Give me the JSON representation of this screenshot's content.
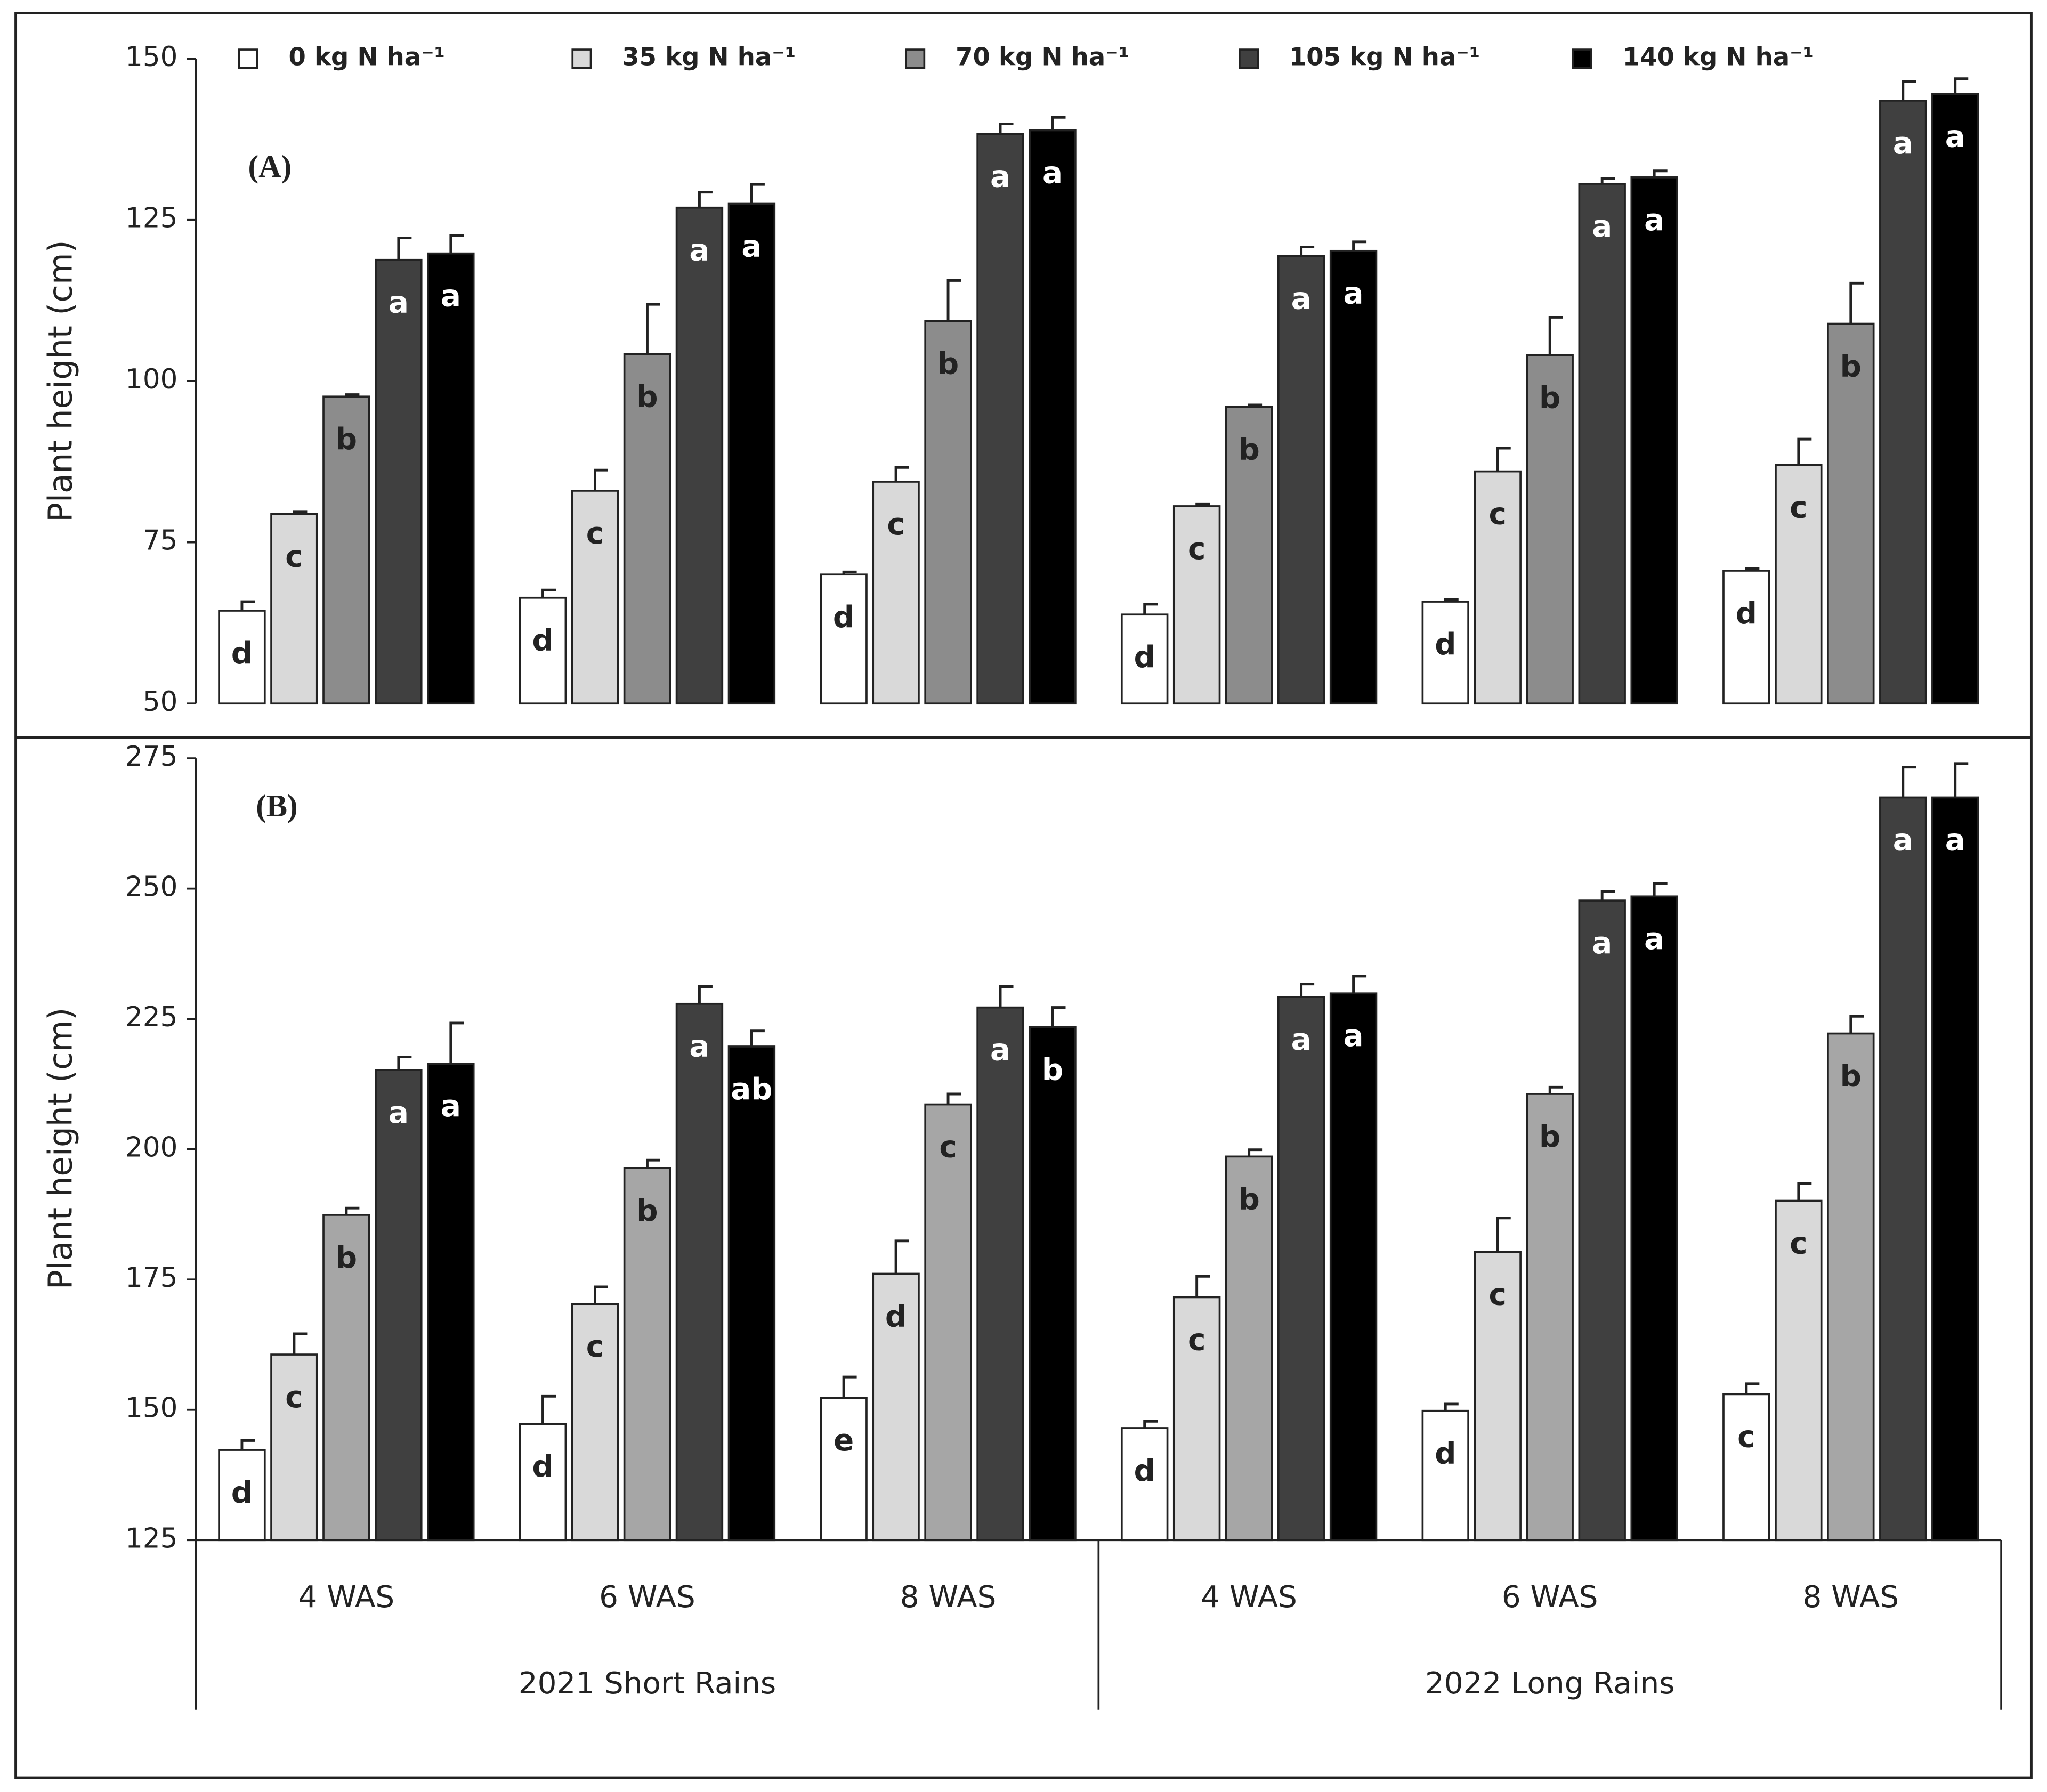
{
  "chart_data": [
    {
      "type": "bar",
      "panel_label": "(A)",
      "y_label": "Plant height (cm)",
      "ylim": [
        50,
        150
      ],
      "yticks": [
        50,
        75,
        100,
        125,
        150
      ],
      "legend": "top",
      "series": [
        {
          "name": "0 kg N ha⁻¹",
          "color": "#ffffff",
          "values": [
            64.4,
            66.4,
            70,
            63.8,
            65.8,
            70.6
          ],
          "errors": [
            1.4,
            1.2,
            0.4,
            1.6,
            0.3,
            0.3
          ],
          "significance": [
            "d",
            "d",
            "d",
            "d",
            "d",
            "d"
          ]
        },
        {
          "name": "35 kg N ha⁻¹",
          "color": "#d9d9d9",
          "values": [
            79.4,
            83,
            84.4,
            80.6,
            86,
            87
          ],
          "errors": [
            0.3,
            3.2,
            2.2,
            0.3,
            3.6,
            4
          ],
          "significance": [
            "c",
            "c",
            "c",
            "c",
            "c",
            "c"
          ]
        },
        {
          "name": "70 kg N ha⁻¹",
          "color": "#8c8c8c",
          "values": [
            97.6,
            104.2,
            109.3,
            96,
            104,
            108.9
          ],
          "errors": [
            0.3,
            7.7,
            6.3,
            0.3,
            5.9,
            6.3
          ],
          "significance": [
            "b",
            "b",
            "b",
            "b",
            "b",
            "b"
          ]
        },
        {
          "name": "105 kg N ha⁻¹",
          "color": "#404040",
          "values": [
            118.8,
            126.9,
            138.3,
            119.4,
            130.6,
            143.5
          ],
          "errors": [
            3.4,
            2.4,
            1.6,
            1.4,
            0.8,
            3
          ],
          "significance": [
            "a",
            "a",
            "a",
            "a",
            "a",
            "a"
          ]
        },
        {
          "name": "140 kg N ha⁻¹",
          "color": "#000000",
          "values": [
            119.8,
            127.5,
            138.9,
            120.2,
            131.6,
            144.5
          ],
          "errors": [
            2.8,
            3.0,
            2.0,
            1.4,
            1.0,
            2.4
          ],
          "significance": [
            "a",
            "a",
            "a",
            "a",
            "a",
            "a"
          ]
        }
      ]
    },
    {
      "type": "bar",
      "panel_label": "(B)",
      "y_label": "Plant height (cm)",
      "ylim": [
        125,
        275
      ],
      "yticks": [
        125,
        150,
        175,
        200,
        225,
        250,
        275
      ],
      "categories": [
        "4 WAS",
        "6 WAS",
        "8 WAS",
        "4 WAS",
        "6 WAS",
        "8 WAS"
      ],
      "groups": [
        "2021 Short Rains",
        "2022 Long Rains"
      ],
      "series": [
        {
          "color": "#ffffff",
          "values": [
            142.3,
            147.3,
            152.3,
            146.5,
            149.8,
            153
          ],
          "errors": [
            1.8,
            5.3,
            4,
            1.3,
            1.3,
            2
          ],
          "significance": [
            "d",
            "d",
            "e",
            "d",
            "d",
            "c"
          ]
        },
        {
          "color": "#d9d9d9",
          "values": [
            160.6,
            170.3,
            176.1,
            171.6,
            180.3,
            190.1
          ],
          "errors": [
            4,
            3.3,
            6.3,
            4,
            6.5,
            3.3
          ],
          "significance": [
            "c",
            "c",
            "d",
            "c",
            "c",
            "c"
          ]
        },
        {
          "color": "#a6a6a6",
          "values": [
            187.4,
            196.4,
            208.6,
            198.6,
            210.6,
            222.2
          ],
          "errors": [
            1.3,
            1.5,
            2,
            1.3,
            1.3,
            3.3
          ],
          "significance": [
            "b",
            "b",
            "c",
            "b",
            "b",
            "b"
          ]
        },
        {
          "color": "#404040",
          "values": [
            215.2,
            227.9,
            227.2,
            229.2,
            247.7,
            267.5
          ],
          "errors": [
            2.5,
            3.3,
            4,
            2.5,
            1.8,
            5.8
          ],
          "significance": [
            "a",
            "a",
            "a",
            "a",
            "a",
            "a"
          ]
        },
        {
          "color": "#000000",
          "values": [
            216.4,
            219.7,
            223.4,
            229.9,
            248.5,
            267.5
          ],
          "errors": [
            7.8,
            3.0,
            3.8,
            3.3,
            2.5,
            6.5
          ],
          "significance": [
            "a",
            "ab",
            "b",
            "a",
            "a",
            "a"
          ]
        }
      ]
    }
  ]
}
